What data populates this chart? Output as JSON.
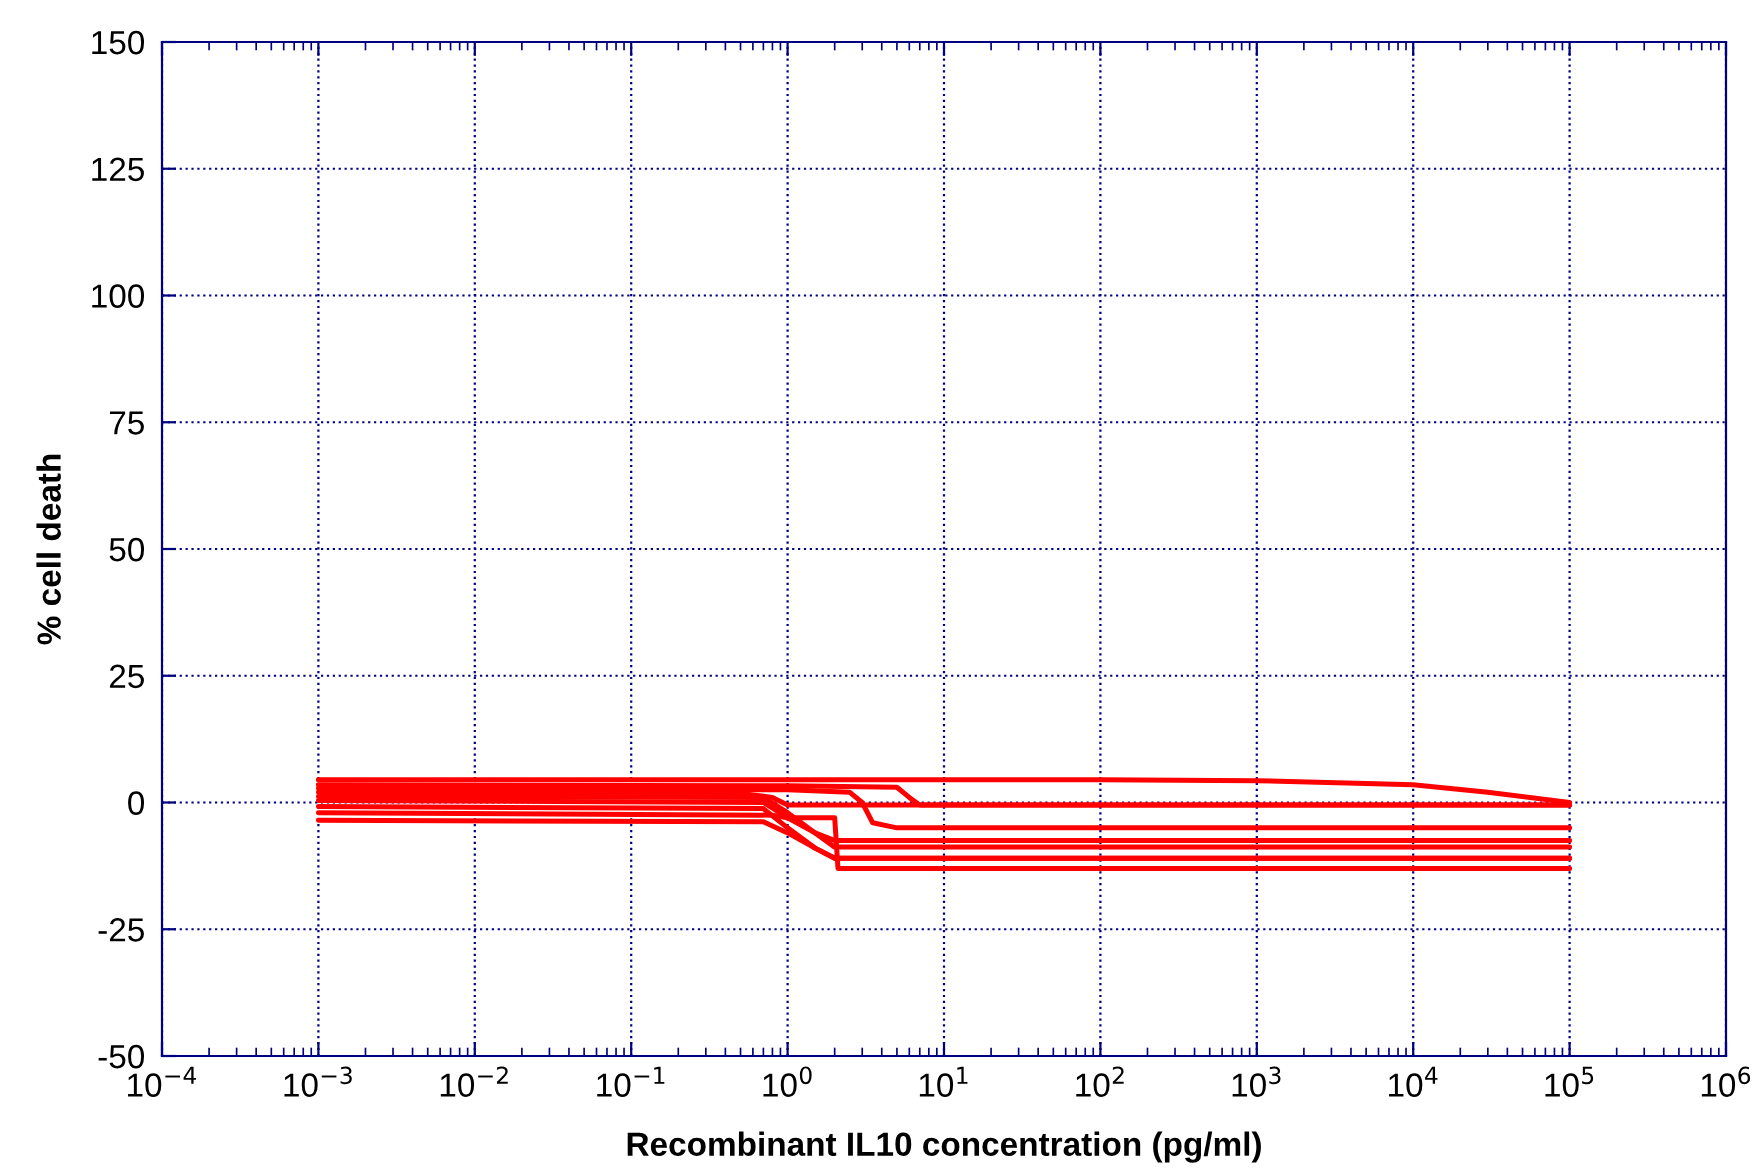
{
  "chart_data": {
    "type": "line",
    "xlabel": "Recombinant IL10 concentration (pg/ml)",
    "ylabel": "% cell death",
    "log": "x",
    "xlim": [
      0.0001,
      1000000
    ],
    "ylim": [
      -50,
      150
    ],
    "xticks": [
      {
        "value": 0.0001,
        "label": "10$^{−4}$"
      },
      {
        "value": 0.001,
        "label": "10$^{−3}$"
      },
      {
        "value": 0.01,
        "label": "10$^{−2}$"
      },
      {
        "value": 0.1,
        "label": "10$^{−1}$"
      },
      {
        "value": 1,
        "label": "10$^{0}$"
      },
      {
        "value": 10,
        "label": "10$^{1}$"
      },
      {
        "value": 100,
        "label": "10$^{2}$"
      },
      {
        "value": 1000,
        "label": "10$^{3}$"
      },
      {
        "value": 10000,
        "label": "10$^{4}$"
      },
      {
        "value": 100000,
        "label": "10$^{5}$"
      },
      {
        "value": 1000000,
        "label": "10$^{6}$"
      }
    ],
    "yticks": [
      -50,
      -25,
      0,
      25,
      50,
      75,
      100,
      125,
      150
    ],
    "grid": true,
    "marker": "none",
    "line_style": "solid",
    "series": [
      {
        "color": "#ff0000",
        "x": [
          0.001,
          1,
          100,
          1000,
          10000,
          30000,
          100000
        ],
        "values": [
          4.5,
          4.5,
          4.5,
          4.3,
          3.5,
          2,
          0
        ]
      },
      {
        "color": "#ff0000",
        "x": [
          0.001,
          1,
          5,
          6,
          7,
          100000
        ],
        "values": [
          3.5,
          3.3,
          3,
          1,
          -0.5,
          -0.5
        ]
      },
      {
        "color": "#ff0000",
        "x": [
          0.001,
          1,
          2.5,
          3,
          3.5,
          5,
          100000
        ],
        "values": [
          2.8,
          2.5,
          2,
          0,
          -4,
          -5,
          -5
        ]
      },
      {
        "color": "#ff0000",
        "x": [
          0.001,
          0.5,
          0.8,
          1,
          100000
        ],
        "values": [
          2,
          1.8,
          1,
          -0.5,
          -0.5
        ]
      },
      {
        "color": "#ff0000",
        "x": [
          0.001,
          0.7,
          1,
          1.5,
          2,
          100000
        ],
        "values": [
          1.2,
          1,
          -2,
          -6,
          -7.5,
          -7.5
        ]
      },
      {
        "color": "#ff0000",
        "x": [
          0.001,
          0.7,
          1,
          1.5,
          2,
          100000
        ],
        "values": [
          0.4,
          0,
          -3,
          -6,
          -8.8,
          -8.8
        ]
      },
      {
        "color": "#ff0000",
        "x": [
          0.001,
          0.7,
          1,
          1.5,
          2,
          100000
        ],
        "values": [
          -0.8,
          -1.2,
          -5,
          -9,
          -11,
          -11
        ]
      },
      {
        "color": "#ff0000",
        "x": [
          0.001,
          0.8,
          1,
          2,
          2.1,
          100000
        ],
        "values": [
          -2,
          -2.5,
          -3,
          -3,
          -13,
          -13
        ]
      },
      {
        "color": "#ff0000",
        "x": [
          0.001,
          0.7,
          1,
          1.5,
          2,
          100000
        ],
        "values": [
          -3.5,
          -3.8,
          -6,
          -9,
          -11,
          -11
        ]
      }
    ]
  }
}
